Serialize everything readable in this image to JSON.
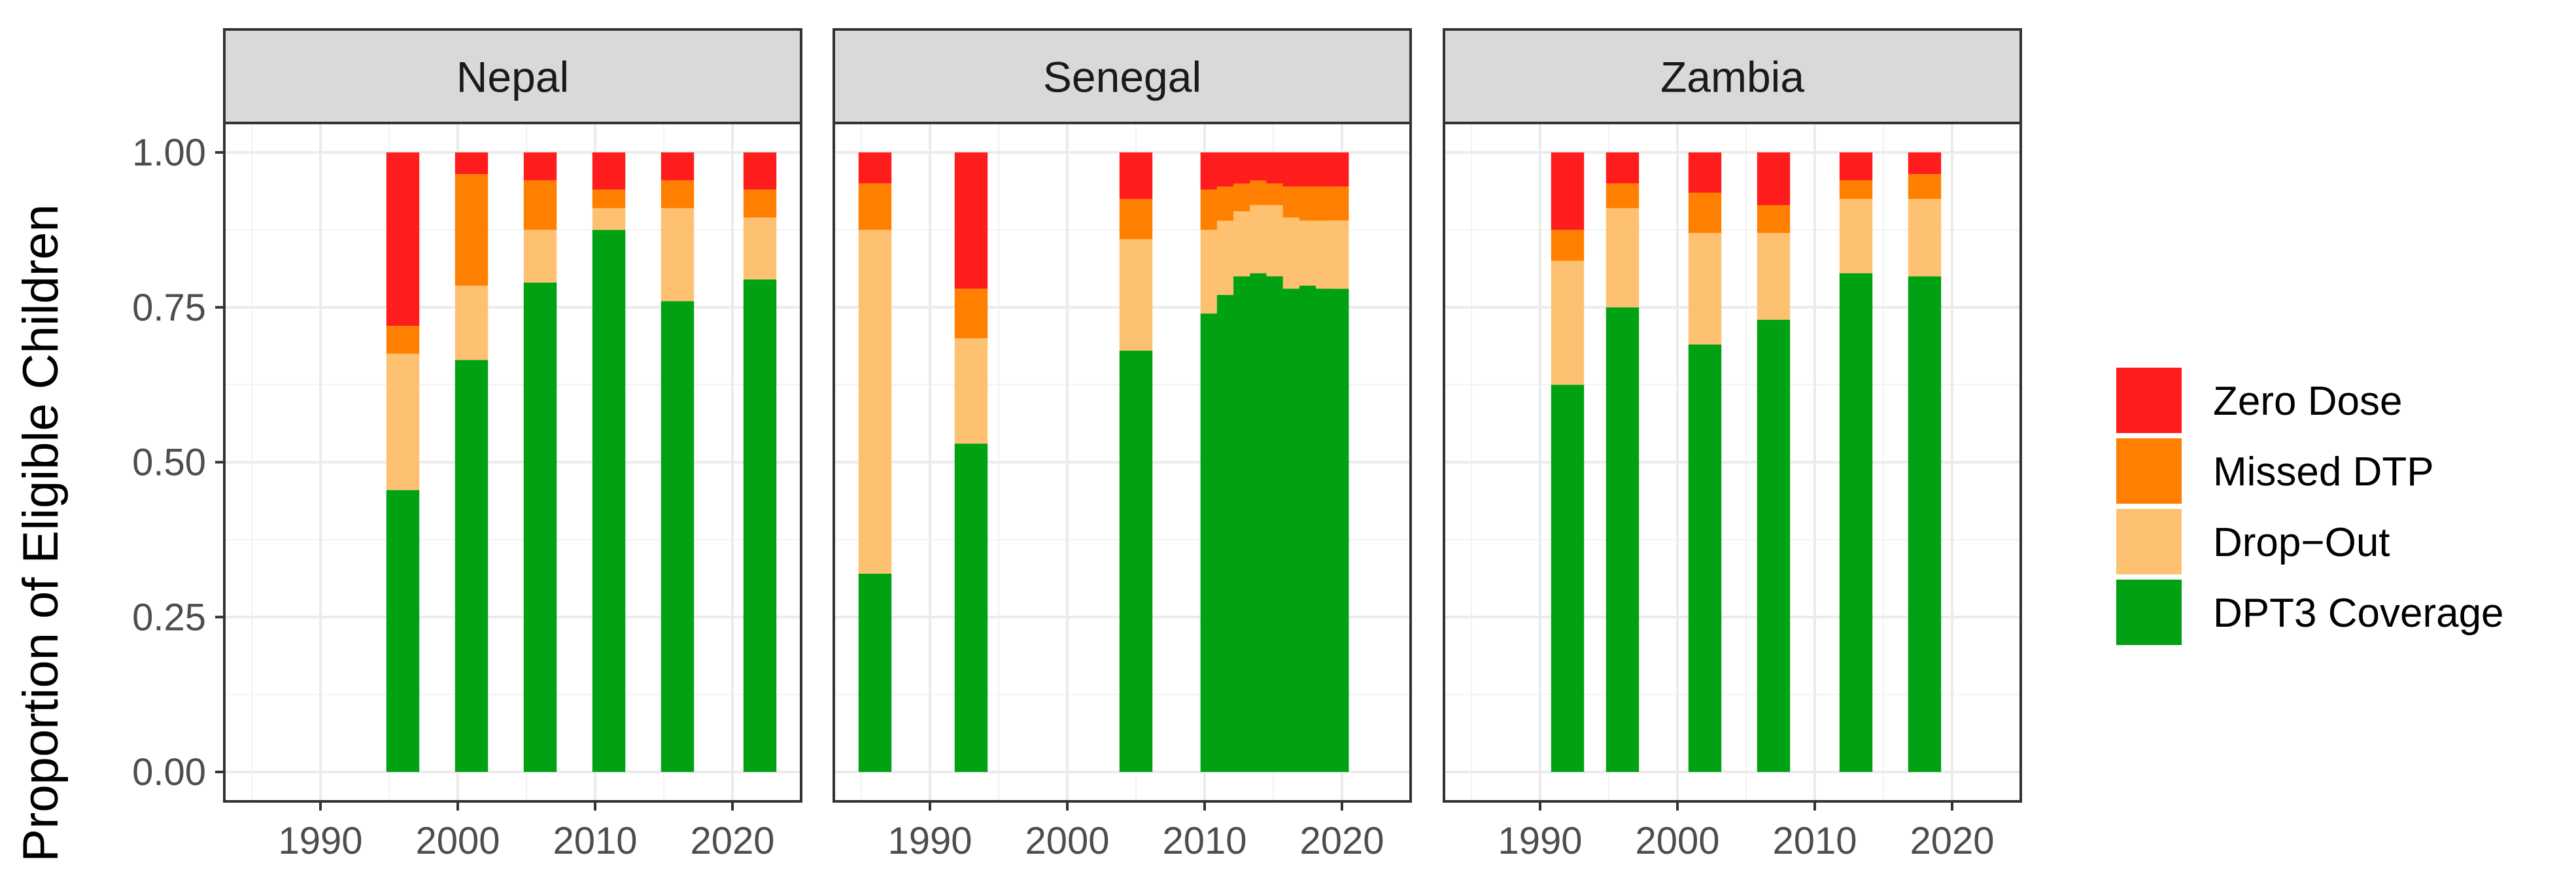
{
  "chart_data": {
    "type": "bar",
    "stacked": true,
    "ylabel": "Proportion of Eligible Children",
    "xlabel": "",
    "xlim": [
      1983,
      2025
    ],
    "ylim": [
      0,
      1.05
    ],
    "y_ticks": [
      0,
      0.25,
      0.5,
      0.75,
      1
    ],
    "y_tick_labels": [
      "0.00",
      "0.25",
      "0.50",
      "0.75",
      "1.00"
    ],
    "x_ticks": [
      1990,
      2000,
      2010,
      2020
    ],
    "x_tick_labels": [
      "1990",
      "2000",
      "2010",
      "2020"
    ],
    "bar_width_years": 2.4,
    "series": [
      {
        "key": "zero",
        "name": "Zero Dose",
        "color": "#ff1c1c"
      },
      {
        "key": "missed",
        "name": "Missed DTP",
        "color": "#ff8000"
      },
      {
        "key": "dropout",
        "name": "Drop−Out",
        "color": "#fec171"
      },
      {
        "key": "dpt3",
        "name": "DPT3 Coverage",
        "color": "#00a112"
      }
    ],
    "panels": [
      {
        "title": "Nepal",
        "bars": [
          {
            "year": 1996,
            "dpt3": 0.455,
            "dropout": 0.22,
            "missed": 0.045,
            "zero": 0.28
          },
          {
            "year": 2001,
            "dpt3": 0.665,
            "dropout": 0.12,
            "missed": 0.18,
            "zero": 0.035
          },
          {
            "year": 2006,
            "dpt3": 0.79,
            "dropout": 0.085,
            "missed": 0.08,
            "zero": 0.045
          },
          {
            "year": 2011,
            "dpt3": 0.875,
            "dropout": 0.035,
            "missed": 0.03,
            "zero": 0.06
          },
          {
            "year": 2016,
            "dpt3": 0.76,
            "dropout": 0.15,
            "missed": 0.045,
            "zero": 0.045
          },
          {
            "year": 2022,
            "dpt3": 0.795,
            "dropout": 0.1,
            "missed": 0.045,
            "zero": 0.06
          }
        ]
      },
      {
        "title": "Senegal",
        "bars": [
          {
            "year": 1986,
            "dpt3": 0.32,
            "dropout": 0.555,
            "missed": 0.075,
            "zero": 0.05
          },
          {
            "year": 1993,
            "dpt3": 0.53,
            "dropout": 0.17,
            "missed": 0.08,
            "zero": 0.22
          },
          {
            "year": 2005,
            "dpt3": 0.68,
            "dropout": 0.18,
            "missed": 0.065,
            "zero": 0.075
          },
          {
            "year": 2010.9,
            "dpt3": 0.74,
            "dropout": 0.135,
            "missed": 0.065,
            "zero": 0.06
          },
          {
            "year": 2012.1,
            "dpt3": 0.77,
            "dropout": 0.12,
            "missed": 0.055,
            "zero": 0.055
          },
          {
            "year": 2013.3,
            "dpt3": 0.8,
            "dropout": 0.105,
            "missed": 0.045,
            "zero": 0.05
          },
          {
            "year": 2014.5,
            "dpt3": 0.805,
            "dropout": 0.11,
            "missed": 0.04,
            "zero": 0.045
          },
          {
            "year": 2015.7,
            "dpt3": 0.8,
            "dropout": 0.115,
            "missed": 0.035,
            "zero": 0.05
          },
          {
            "year": 2016.9,
            "dpt3": 0.78,
            "dropout": 0.115,
            "missed": 0.05,
            "zero": 0.055
          },
          {
            "year": 2018.1,
            "dpt3": 0.785,
            "dropout": 0.105,
            "missed": 0.055,
            "zero": 0.055
          },
          {
            "year": 2019.3,
            "dpt3": 0.78,
            "dropout": 0.11,
            "missed": 0.055,
            "zero": 0.055
          }
        ]
      },
      {
        "title": "Zambia",
        "bars": [
          {
            "year": 1992,
            "dpt3": 0.625,
            "dropout": 0.2,
            "missed": 0.05,
            "zero": 0.125
          },
          {
            "year": 1996,
            "dpt3": 0.75,
            "dropout": 0.16,
            "missed": 0.04,
            "zero": 0.05
          },
          {
            "year": 2002,
            "dpt3": 0.69,
            "dropout": 0.18,
            "missed": 0.065,
            "zero": 0.065
          },
          {
            "year": 2007,
            "dpt3": 0.73,
            "dropout": 0.14,
            "missed": 0.045,
            "zero": 0.085
          },
          {
            "year": 2013,
            "dpt3": 0.805,
            "dropout": 0.12,
            "missed": 0.03,
            "zero": 0.045
          },
          {
            "year": 2018,
            "dpt3": 0.8,
            "dropout": 0.125,
            "missed": 0.04,
            "zero": 0.035
          }
        ]
      }
    ],
    "legend_position": "right"
  }
}
